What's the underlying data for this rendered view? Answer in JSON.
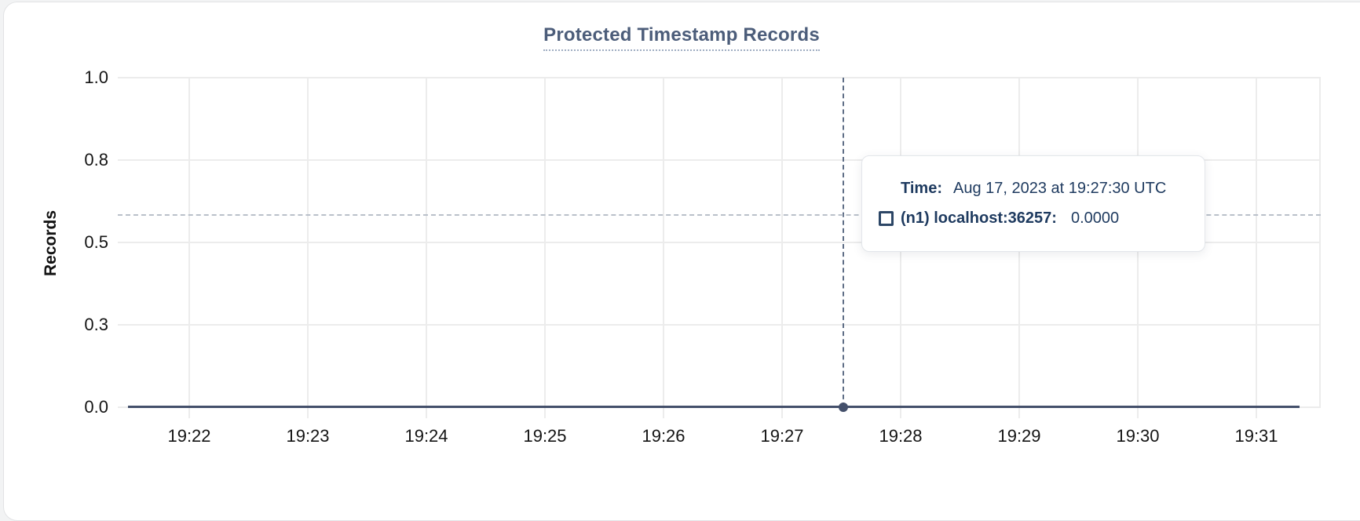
{
  "card": {
    "title": "Protected Timestamp Records"
  },
  "chart_data": {
    "type": "line",
    "title": "Protected Timestamp Records",
    "xlabel": "",
    "ylabel": "Records",
    "ylim": [
      0.0,
      1.0
    ],
    "grid": true,
    "legend_position": "none",
    "y_tick_labels": [
      "1.0",
      "0.8",
      "0.5",
      "0.3",
      "0.0"
    ],
    "y_tick_values": [
      1.0,
      0.75,
      0.5,
      0.25,
      0.0
    ],
    "x_tick_labels": [
      "19:22",
      "19:23",
      "19:24",
      "19:25",
      "19:26",
      "19:27",
      "19:28",
      "19:29",
      "19:30",
      "19:31"
    ],
    "series": [
      {
        "name": "(n1) localhost:36257",
        "color": "#44506b",
        "x": [
          "19:22",
          "19:23",
          "19:24",
          "19:25",
          "19:26",
          "19:27",
          "19:28",
          "19:29",
          "19:30",
          "19:31"
        ],
        "values": [
          0,
          0,
          0,
          0,
          0,
          0,
          0,
          0,
          0,
          0
        ]
      }
    ],
    "hover_point": {
      "time": "19:27:30",
      "value": 0.0
    }
  },
  "tooltip": {
    "time_label": "Time:",
    "time_value": "Aug 17, 2023 at 19:27:30 UTC",
    "series_icon": "checkbox-icon",
    "series_label": "(n1) localhost:36257:",
    "series_value": "0.0000"
  },
  "colors": {
    "title": "#4c5d7a",
    "axis_text": "#141414",
    "gridline": "#ececec",
    "series_line": "#44506b",
    "crosshair_vertical": "#5f6e86",
    "crosshair_horizontal": "#b9c0ca",
    "tooltip_text": "#1e3a5f"
  }
}
